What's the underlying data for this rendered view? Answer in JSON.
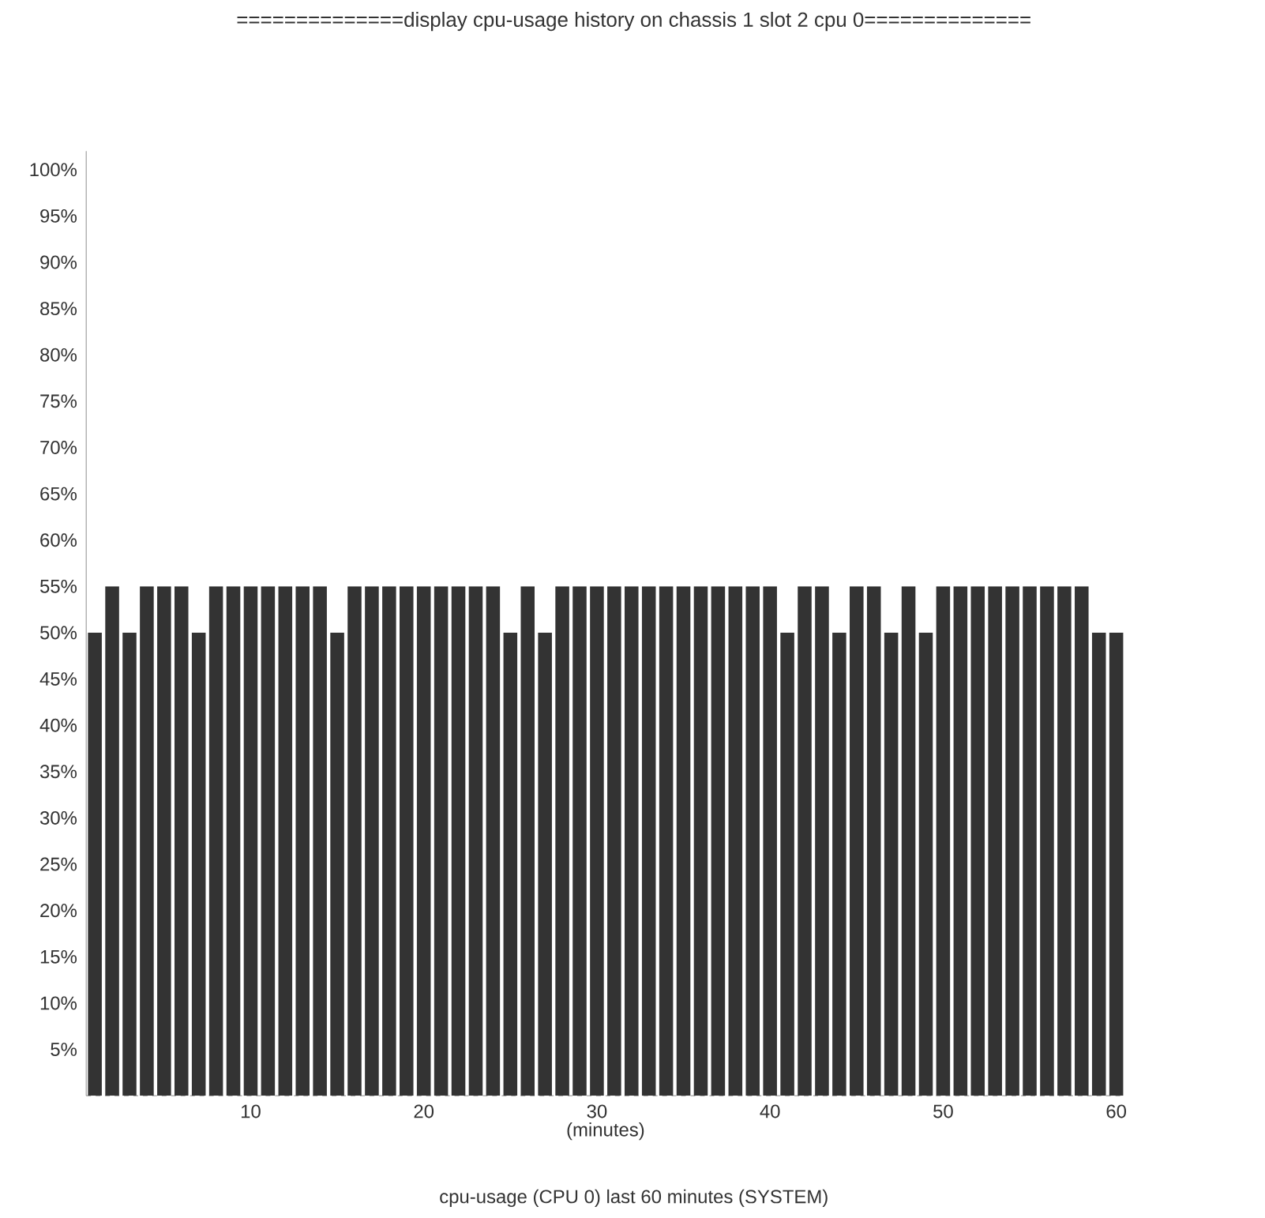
{
  "chart_data": {
    "type": "bar",
    "title": "==============display cpu-usage history on chassis 1 slot 2 cpu 0==============",
    "annotations": [
      "cpu-usage (CPU 0) last 60 minutes (SYSTEM)"
    ],
    "xlabel": "(minutes)",
    "x": [
      1,
      2,
      3,
      4,
      5,
      6,
      7,
      8,
      9,
      10,
      11,
      12,
      13,
      14,
      15,
      16,
      17,
      18,
      19,
      20,
      21,
      22,
      23,
      24,
      25,
      26,
      27,
      28,
      29,
      30,
      31,
      32,
      33,
      34,
      35,
      36,
      37,
      38,
      39,
      40,
      41,
      42,
      43,
      44,
      45,
      46,
      47,
      48,
      49,
      50,
      51,
      52,
      53,
      54,
      55,
      56,
      57,
      58,
      59,
      60
    ],
    "values": [
      50,
      55,
      50,
      55,
      55,
      55,
      50,
      55,
      55,
      55,
      55,
      55,
      55,
      55,
      50,
      55,
      55,
      55,
      55,
      55,
      55,
      55,
      55,
      55,
      50,
      55,
      50,
      55,
      55,
      55,
      55,
      55,
      55,
      55,
      55,
      55,
      55,
      55,
      55,
      55,
      50,
      55,
      55,
      50,
      55,
      55,
      50,
      55,
      50,
      55,
      55,
      55,
      55,
      55,
      55,
      55,
      55,
      55,
      50,
      50
    ],
    "color": "#333333",
    "xlim": [
      0.5,
      60.5
    ],
    "xticks": [
      10,
      20,
      30,
      40,
      50,
      60
    ],
    "ylim": [
      0,
      102
    ],
    "yticks": [
      {
        "value": 5,
        "label": "5%"
      },
      {
        "value": 10,
        "label": "10%"
      },
      {
        "value": 15,
        "label": "15%"
      },
      {
        "value": 20,
        "label": "20%"
      },
      {
        "value": 25,
        "label": "25%"
      },
      {
        "value": 30,
        "label": "30%"
      },
      {
        "value": 35,
        "label": "35%"
      },
      {
        "value": 40,
        "label": "40%"
      },
      {
        "value": 45,
        "label": "45%"
      },
      {
        "value": 50,
        "label": "50%"
      },
      {
        "value": 55,
        "label": "55%"
      },
      {
        "value": 60,
        "label": "60%"
      },
      {
        "value": 65,
        "label": "65%"
      },
      {
        "value": 70,
        "label": "70%"
      },
      {
        "value": 75,
        "label": "75%"
      },
      {
        "value": 80,
        "label": "80%"
      },
      {
        "value": 85,
        "label": "85%"
      },
      {
        "value": 90,
        "label": "90%"
      },
      {
        "value": 95,
        "label": "95%"
      },
      {
        "value": 100,
        "label": "100%"
      }
    ],
    "grid": false
  }
}
